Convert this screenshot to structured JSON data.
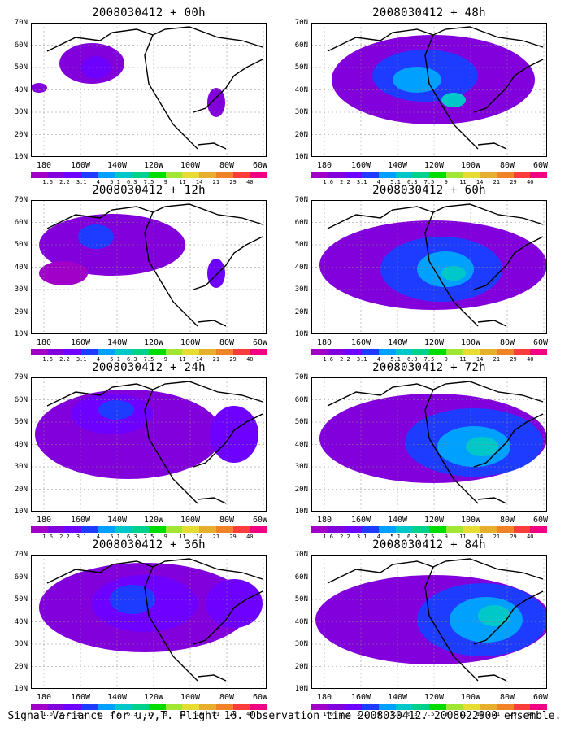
{
  "caption": "Signal Variance for u,v,T. Flight 16. Observation time 2008030412. 2008022900 ensemble.",
  "lat_labels": [
    "70N",
    "60N",
    "50N",
    "40N",
    "30N",
    "20N",
    "10N"
  ],
  "lon_labels": [
    "180",
    "160W",
    "140W",
    "120W",
    "100W",
    "80W",
    "60W"
  ],
  "colorbar_labels": [
    "1.6",
    "2.2",
    "3.1",
    "4",
    "5.1",
    "6.3",
    "7.5",
    "9",
    "11",
    "14",
    "21",
    "29",
    "40"
  ],
  "colorbar_colors": [
    "#a000c8",
    "#8200dc",
    "#6e00ff",
    "#1e3cff",
    "#00a0ff",
    "#00c8c8",
    "#00d28c",
    "#00dc00",
    "#a0e632",
    "#e6dc32",
    "#e6af2d",
    "#f08228",
    "#fa3c3c",
    "#f00082"
  ],
  "panels": [
    {
      "title": "2008030412 + 00h",
      "blobs": [
        {
          "cx": 75,
          "cy": 50,
          "rx": 40,
          "ry": 25,
          "c": "#8200dc"
        },
        {
          "cx": 80,
          "cy": 55,
          "rx": 18,
          "ry": 14,
          "c": "#6e00ff"
        },
        {
          "cx": 228,
          "cy": 98,
          "rx": 11,
          "ry": 18,
          "c": "#8200dc"
        },
        {
          "cx": 10,
          "cy": 80,
          "rx": 10,
          "ry": 6,
          "c": "#8200dc"
        }
      ]
    },
    {
      "title": "2008030412 + 48h",
      "blobs": [
        {
          "cx": 150,
          "cy": 70,
          "rx": 125,
          "ry": 55,
          "c": "#8200dc"
        },
        {
          "cx": 140,
          "cy": 65,
          "rx": 65,
          "ry": 32,
          "c": "#1e3cff"
        },
        {
          "cx": 130,
          "cy": 70,
          "rx": 30,
          "ry": 16,
          "c": "#00a0ff"
        },
        {
          "cx": 175,
          "cy": 95,
          "rx": 15,
          "ry": 9,
          "c": "#00c8c8"
        }
      ]
    },
    {
      "title": "2008030412 + 12h",
      "blobs": [
        {
          "cx": 100,
          "cy": 55,
          "rx": 90,
          "ry": 38,
          "c": "#8200dc"
        },
        {
          "cx": 80,
          "cy": 45,
          "rx": 22,
          "ry": 15,
          "c": "#1e3cff"
        },
        {
          "cx": 228,
          "cy": 90,
          "rx": 11,
          "ry": 18,
          "c": "#6e00ff"
        },
        {
          "cx": 40,
          "cy": 90,
          "rx": 30,
          "ry": 15,
          "c": "#a000c8"
        }
      ]
    },
    {
      "title": "2008030412 + 60h",
      "blobs": [
        {
          "cx": 150,
          "cy": 80,
          "rx": 140,
          "ry": 55,
          "c": "#8200dc"
        },
        {
          "cx": 160,
          "cy": 85,
          "rx": 75,
          "ry": 40,
          "c": "#1e3cff"
        },
        {
          "cx": 165,
          "cy": 85,
          "rx": 35,
          "ry": 22,
          "c": "#00a0ff"
        },
        {
          "cx": 175,
          "cy": 90,
          "rx": 15,
          "ry": 9,
          "c": "#00c8c8"
        }
      ]
    },
    {
      "title": "2008030412 + 24h",
      "blobs": [
        {
          "cx": 120,
          "cy": 70,
          "rx": 115,
          "ry": 55,
          "c": "#8200dc"
        },
        {
          "cx": 100,
          "cy": 45,
          "rx": 50,
          "ry": 25,
          "c": "#6e00ff"
        },
        {
          "cx": 105,
          "cy": 40,
          "rx": 22,
          "ry": 12,
          "c": "#1e3cff"
        },
        {
          "cx": 250,
          "cy": 70,
          "rx": 30,
          "ry": 35,
          "c": "#6e00ff"
        }
      ]
    },
    {
      "title": "2008030412 + 72h",
      "blobs": [
        {
          "cx": 150,
          "cy": 75,
          "rx": 140,
          "ry": 55,
          "c": "#8200dc"
        },
        {
          "cx": 200,
          "cy": 80,
          "rx": 85,
          "ry": 42,
          "c": "#1e3cff"
        },
        {
          "cx": 200,
          "cy": 85,
          "rx": 45,
          "ry": 25,
          "c": "#00a0ff"
        },
        {
          "cx": 210,
          "cy": 85,
          "rx": 20,
          "ry": 12,
          "c": "#00c8c8"
        }
      ]
    },
    {
      "title": "2008030412 + 36h",
      "blobs": [
        {
          "cx": 140,
          "cy": 65,
          "rx": 130,
          "ry": 55,
          "c": "#8200dc"
        },
        {
          "cx": 140,
          "cy": 60,
          "rx": 65,
          "ry": 35,
          "c": "#6e00ff"
        },
        {
          "cx": 125,
          "cy": 55,
          "rx": 28,
          "ry": 18,
          "c": "#1e3cff"
        },
        {
          "cx": 250,
          "cy": 60,
          "rx": 35,
          "ry": 30,
          "c": "#6e00ff"
        }
      ]
    },
    {
      "title": "2008030412 + 84h",
      "blobs": [
        {
          "cx": 150,
          "cy": 80,
          "rx": 145,
          "ry": 55,
          "c": "#8200dc"
        },
        {
          "cx": 210,
          "cy": 80,
          "rx": 80,
          "ry": 45,
          "c": "#1e3cff"
        },
        {
          "cx": 215,
          "cy": 80,
          "rx": 45,
          "ry": 28,
          "c": "#00a0ff"
        },
        {
          "cx": 225,
          "cy": 75,
          "rx": 20,
          "ry": 13,
          "c": "#00c8c8"
        }
      ]
    }
  ]
}
